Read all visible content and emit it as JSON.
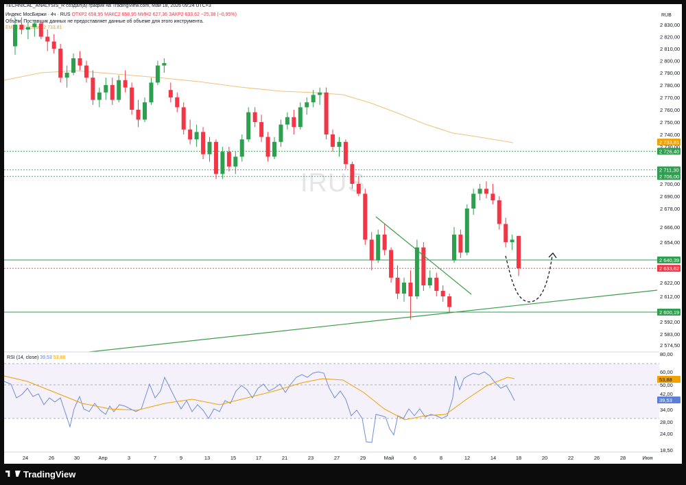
{
  "header": {
    "title": "TECHNICAL_ANALYSIS_R создал(а) график на TradingView.com, Май 18, 2026 09:24 UTC+3",
    "currency": "RUB"
  },
  "legend": {
    "symbol": "Индекс МосБиржи · 4ч · RUS",
    "ohlc": "ОТКР2 658,95 МАКС2 658,95 МИН2 627,36 ЗАКР2 633,62 −25,38 (−0,95%)",
    "volume_note": "Объём: Поставщик данных не предоставляет данные об объеме для этого инструмента.",
    "ema": "EMA (200, close) 2 733,81"
  },
  "watermark": "IRUS",
  "rsi_legend": {
    "label": "RSI (14, close)",
    "value1": "39,53",
    "value2": "53,88"
  },
  "branding": "TradingView",
  "chart_data": {
    "type": "candlestick",
    "price_axis": {
      "ticks": [
        "2 830,00",
        "2 820,00",
        "2 810,00",
        "2 800,00",
        "2 790,00",
        "2 780,00",
        "2 770,00",
        "2 760,00",
        "2 750,00",
        "2 740,00",
        "2 730,00",
        "2 700,00",
        "2 690,00",
        "2 678,00",
        "2 666,00",
        "2 654,00",
        "2 622,00",
        "2 612,00",
        "2 592,00",
        "2 583,00",
        "2 574,50"
      ],
      "range": [
        2570,
        2838
      ]
    },
    "price_labels": [
      {
        "text": "2 733,81",
        "value": 2733.81,
        "color": "#f0a000"
      },
      {
        "text": "2 726,40",
        "value": 2726.4,
        "color": "#2e9e4f"
      },
      {
        "text": "2 711,30",
        "value": 2711.3,
        "color": "#2e9e4f"
      },
      {
        "text": "2 706,00",
        "value": 2706.0,
        "color": "#2e9e4f"
      },
      {
        "text": "2 640,39",
        "value": 2640.39,
        "color": "#2e9e4f"
      },
      {
        "text": "2 633,62",
        "value": 2633.62,
        "color": "#f23645"
      },
      {
        "text": "2 600,19",
        "value": 2600.19,
        "color": "#2e9e4f"
      }
    ],
    "horizontal_levels": [
      {
        "value": 2726.4,
        "style": "dotted",
        "color": "#2e9e4f"
      },
      {
        "value": 2711.3,
        "style": "dotted",
        "color": "#2e9e4f"
      },
      {
        "value": 2706.0,
        "style": "dotted",
        "color": "#2e9e4f"
      },
      {
        "value": 2640.39,
        "style": "solid",
        "color": "#2e9e4f"
      },
      {
        "value": 2600.19,
        "style": "solid",
        "color": "#2e9e4f"
      },
      {
        "value": 2633.62,
        "style": "dotted",
        "color": "#f23645"
      }
    ],
    "time_axis": [
      "24",
      "26",
      "30",
      "Апр",
      "3",
      "7",
      "9",
      "13",
      "15",
      "17",
      "21",
      "23",
      "27",
      "29",
      "Май",
      "6",
      "8",
      "12",
      "14",
      "18",
      "20",
      "22",
      "26",
      "28",
      "Июн"
    ],
    "candles": [
      [
        2812,
        2836,
        2805,
        2830
      ],
      [
        2830,
        2836,
        2822,
        2826
      ],
      [
        2826,
        2832,
        2818,
        2828
      ],
      [
        2828,
        2834,
        2820,
        2831
      ],
      [
        2831,
        2834,
        2818,
        2820
      ],
      [
        2820,
        2826,
        2808,
        2816
      ],
      [
        2816,
        2822,
        2806,
        2810
      ],
      [
        2810,
        2814,
        2782,
        2786
      ],
      [
        2786,
        2796,
        2778,
        2790
      ],
      [
        2790,
        2806,
        2788,
        2802
      ],
      [
        2802,
        2808,
        2792,
        2796
      ],
      [
        2796,
        2800,
        2782,
        2786
      ],
      [
        2786,
        2792,
        2764,
        2768
      ],
      [
        2768,
        2778,
        2762,
        2774
      ],
      [
        2774,
        2786,
        2768,
        2780
      ],
      [
        2780,
        2786,
        2764,
        2768
      ],
      [
        2768,
        2788,
        2766,
        2784
      ],
      [
        2784,
        2792,
        2774,
        2778
      ],
      [
        2778,
        2782,
        2756,
        2760
      ],
      [
        2760,
        2768,
        2746,
        2752
      ],
      [
        2752,
        2770,
        2750,
        2766
      ],
      [
        2766,
        2786,
        2764,
        2782
      ],
      [
        2782,
        2800,
        2780,
        2796
      ],
      [
        2796,
        2802,
        2790,
        2798
      ],
      [
        2776,
        2782,
        2766,
        2770
      ],
      [
        2770,
        2774,
        2758,
        2762
      ],
      [
        2762,
        2766,
        2740,
        2744
      ],
      [
        2744,
        2752,
        2732,
        2736
      ],
      [
        2736,
        2748,
        2730,
        2742
      ],
      [
        2742,
        2746,
        2720,
        2724
      ],
      [
        2724,
        2738,
        2718,
        2734
      ],
      [
        2734,
        2736,
        2704,
        2708
      ],
      [
        2708,
        2730,
        2704,
        2726
      ],
      [
        2726,
        2730,
        2710,
        2714
      ],
      [
        2714,
        2726,
        2708,
        2722
      ],
      [
        2722,
        2740,
        2718,
        2736
      ],
      [
        2736,
        2762,
        2734,
        2758
      ],
      [
        2758,
        2762,
        2746,
        2750
      ],
      [
        2750,
        2756,
        2734,
        2738
      ],
      [
        2738,
        2742,
        2718,
        2722
      ],
      [
        2722,
        2738,
        2720,
        2734
      ],
      [
        2734,
        2752,
        2730,
        2748
      ],
      [
        2748,
        2758,
        2744,
        2754
      ],
      [
        2754,
        2760,
        2740,
        2746
      ],
      [
        2746,
        2766,
        2744,
        2762
      ],
      [
        2762,
        2770,
        2756,
        2766
      ],
      [
        2766,
        2776,
        2762,
        2772
      ],
      [
        2772,
        2778,
        2764,
        2774
      ],
      [
        2774,
        2778,
        2736,
        2740
      ],
      [
        2740,
        2744,
        2726,
        2730
      ],
      [
        2730,
        2738,
        2722,
        2734
      ],
      [
        2734,
        2736,
        2712,
        2716
      ],
      [
        2716,
        2718,
        2696,
        2700
      ],
      [
        2700,
        2706,
        2690,
        2692
      ],
      [
        2692,
        2696,
        2652,
        2656
      ],
      [
        2656,
        2662,
        2632,
        2640
      ],
      [
        2640,
        2664,
        2638,
        2660
      ],
      [
        2660,
        2668,
        2644,
        2648
      ],
      [
        2648,
        2650,
        2622,
        2626
      ],
      [
        2626,
        2636,
        2610,
        2614
      ],
      [
        2614,
        2626,
        2608,
        2622
      ],
      [
        2622,
        2632,
        2594,
        2612
      ],
      [
        2612,
        2656,
        2610,
        2650
      ],
      [
        2650,
        2654,
        2616,
        2620
      ],
      [
        2620,
        2632,
        2618,
        2626
      ],
      [
        2626,
        2630,
        2612,
        2616
      ],
      [
        2616,
        2620,
        2608,
        2612
      ],
      [
        2612,
        2614,
        2600,
        2604
      ],
      [
        2640,
        2666,
        2638,
        2660
      ],
      [
        2660,
        2664,
        2642,
        2646
      ],
      [
        2646,
        2682,
        2644,
        2678
      ],
      [
        2678,
        2696,
        2674,
        2692
      ],
      [
        2692,
        2700,
        2686,
        2696
      ],
      [
        2696,
        2702,
        2688,
        2692
      ],
      [
        2692,
        2700,
        2682,
        2686
      ],
      [
        2686,
        2690,
        2664,
        2668
      ],
      [
        2668,
        2672,
        2650,
        2654
      ],
      [
        2654,
        2660,
        2648,
        2656
      ],
      [
        2658.95,
        2658.95,
        2627.36,
        2633.62
      ]
    ],
    "ema200": [
      [
        0,
        2787
      ],
      [
        10,
        2795
      ],
      [
        20,
        2794
      ],
      [
        30,
        2790
      ],
      [
        40,
        2780
      ],
      [
        48,
        2776
      ],
      [
        52,
        2770
      ],
      [
        58,
        2755
      ],
      [
        64,
        2746
      ],
      [
        70,
        2741
      ],
      [
        74,
        2739
      ]
    ],
    "trendlines": [
      {
        "from": [
          2650,
          0.541
        ],
        "to": [
          2687,
          0.8
        ]
      },
      {
        "note": "rising support"
      }
    ],
    "rsi": {
      "axis_ticks": [
        "80,00",
        "60,00",
        "50,00",
        "42,00",
        "34,00",
        "28,00",
        "24,00",
        "18,50"
      ],
      "upper": 70,
      "lower": 30,
      "last": 39.53,
      "ma_last": 53.88
    }
  }
}
